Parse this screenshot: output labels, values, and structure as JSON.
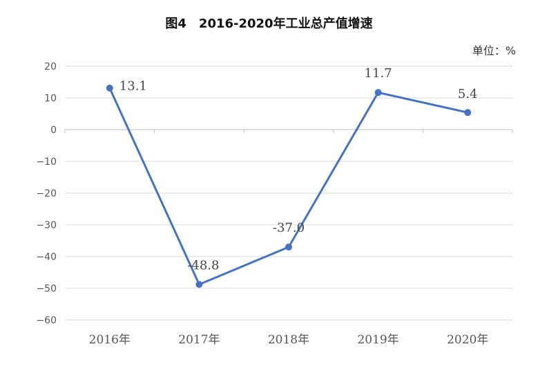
{
  "header": {
    "title": "图4　2016-2020年工业总产值增速",
    "unit": "单位：%"
  },
  "chart_data": {
    "type": "line",
    "title": "图4　2016-2020年工业总产值增速",
    "unit_label": "单位：%",
    "categories": [
      "2016年",
      "2017年",
      "2018年",
      "2019年",
      "2020年"
    ],
    "series": [
      {
        "values": [
          13.1,
          -48.8,
          -37.0,
          11.7,
          5.4
        ],
        "labels": [
          "13.1",
          "-48.8",
          "-37.0",
          "11.7",
          "5.4"
        ]
      }
    ],
    "ylim": [
      -60,
      20
    ],
    "yticks": [
      20,
      10,
      0,
      -10,
      -20,
      -30,
      -40,
      -50,
      -60
    ],
    "ytick_labels": [
      "20",
      "10",
      "0",
      "−10",
      "−20",
      "−30",
      "−40",
      "−50",
      "−60"
    ],
    "grid": true,
    "colors": {
      "line": "#4472C4",
      "grid": "#d9d9d9",
      "axis": "#bfbfbf"
    }
  }
}
